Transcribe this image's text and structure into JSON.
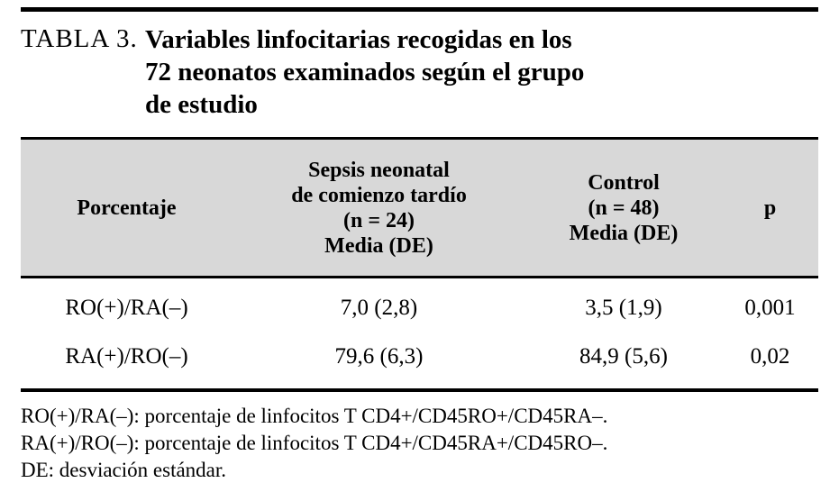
{
  "caption": {
    "label": "TABLA 3.",
    "title": "Variables linfocitarias recogidas en los\n72 neonatos examinados según el grupo\nde estudio"
  },
  "table": {
    "headers": [
      "Porcentaje",
      "Sepsis neonatal\nde comienzo tardío\n(n = 24)\nMedia (DE)",
      "Control\n(n = 48)\nMedia (DE)",
      "p"
    ],
    "rows": [
      [
        "RO(+)/RA(–)",
        "7,0 (2,8)",
        "3,5 (1,9)",
        "0,001"
      ],
      [
        "RA(+)/RO(–)",
        "79,6 (6,3)",
        "84,9 (5,6)",
        "0,02"
      ]
    ]
  },
  "footnotes": [
    "RO(+)/RA(–): porcentaje de linfocitos T CD4+/CD45RO+/CD45RA–.",
    "RA(+)/RO(–): porcentaje de linfocitos T CD4+/CD45RA+/CD45RO–.",
    "DE: desviación estándar."
  ]
}
